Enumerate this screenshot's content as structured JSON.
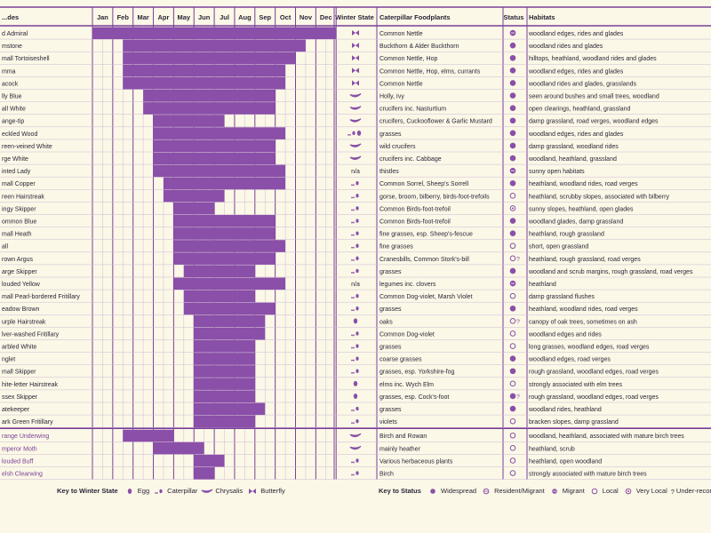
{
  "headers": {
    "species": "...des",
    "months": [
      "Jan",
      "Feb",
      "Mar",
      "Apr",
      "May",
      "Jun",
      "Jul",
      "Aug",
      "Sep",
      "Oct",
      "Nov",
      "Dec"
    ],
    "winter_state": "Winter State",
    "foodplants": "Caterpillar Foodplants",
    "status": "Status",
    "habitats": "Habitats"
  },
  "chart_data": {
    "type": "table",
    "axis": "flight period by month (fractional month index, 0 = start of Jan, 12 = end of Dec)",
    "rows": [
      {
        "species": "d Admiral",
        "periods": [
          [
            0,
            12
          ]
        ],
        "winter": "adult",
        "winter_text": "",
        "food": "Common Nettle",
        "status": "migrant",
        "habitat": "woodland edges, rides and glades"
      },
      {
        "species": "mstone",
        "periods": [
          [
            1.5,
            10.5
          ]
        ],
        "winter": "adult",
        "winter_text": "",
        "food": "Buckthorn & Alder Buckthorn",
        "status": "widespread",
        "habitat": "woodland rides and glades"
      },
      {
        "species": "mall Tortoiseshell",
        "periods": [
          [
            1.5,
            10
          ]
        ],
        "winter": "adult",
        "winter_text": "",
        "food": "Common Nettle, Hop",
        "status": "widespread",
        "habitat": "hilltops, heathland, woodland rides and glades"
      },
      {
        "species": "mma",
        "periods": [
          [
            1.5,
            9.5
          ]
        ],
        "winter": "adult",
        "winter_text": "",
        "food": "Common Nettle, Hop, elms, currants",
        "status": "widespread",
        "habitat": "woodland edges, rides and glades"
      },
      {
        "species": "acock",
        "periods": [
          [
            1.5,
            9.5
          ]
        ],
        "winter": "adult",
        "winter_text": "",
        "food": "Common Nettle",
        "status": "widespread",
        "habitat": "woodland rides and glades, grasslands"
      },
      {
        "species": "lly Blue",
        "periods": [
          [
            2.5,
            9
          ]
        ],
        "winter": "chrysalis",
        "winter_text": "",
        "food": "Holly, Ivy",
        "status": "widespread",
        "habitat": "seen around bushes and small trees, woodland"
      },
      {
        "species": "all White",
        "periods": [
          [
            2.5,
            9
          ]
        ],
        "winter": "chrysalis",
        "winter_text": "",
        "food": "crucifers inc. Nasturtium",
        "status": "widespread",
        "habitat": "open clearings, heathland, grassland"
      },
      {
        "species": "ange-tip",
        "periods": [
          [
            3,
            6.5
          ]
        ],
        "winter": "chrysalis",
        "winter_text": "",
        "food": "crucifers, Cuckooflower & Garlic Mustard",
        "status": "widespread",
        "habitat": "damp grassland, road verges, woodland edges"
      },
      {
        "species": "eckled Wood",
        "periods": [
          [
            3,
            9.5
          ]
        ],
        "winter": "multi",
        "winter_text": "",
        "food": "grasses",
        "status": "widespread",
        "habitat": "woodland edges, rides and glades"
      },
      {
        "species": "reen-veined White",
        "periods": [
          [
            3,
            9
          ]
        ],
        "winter": "chrysalis",
        "winter_text": "",
        "food": "wild crucifers",
        "status": "widespread",
        "habitat": "damp grassland, woodland rides"
      },
      {
        "species": "rge White",
        "periods": [
          [
            3,
            9
          ]
        ],
        "winter": "chrysalis",
        "winter_text": "",
        "food": "crucifers inc. Cabbage",
        "status": "widespread",
        "habitat": "woodland, heathland, grassland"
      },
      {
        "species": "inted Lady",
        "periods": [
          [
            3,
            9.5
          ]
        ],
        "winter": "none",
        "winter_text": "n/a",
        "food": "thistles",
        "status": "migrant",
        "habitat": "sunny open habitats"
      },
      {
        "species": "mall Copper",
        "periods": [
          [
            3.5,
            9.5
          ]
        ],
        "winter": "cat",
        "winter_text": "",
        "food": "Common Sorrel, Sheep's Sorrell",
        "status": "widespread",
        "habitat": "heathland, woodland rides, road verges"
      },
      {
        "species": "reen Hairstreak",
        "periods": [
          [
            3.5,
            6.5
          ]
        ],
        "winter": "cat",
        "winter_text": "",
        "food": "gorse, broom, bilberry, birds-foot-trefoils",
        "status": "local",
        "habitat": "heathland, scrubby slopes, associated with bilberry"
      },
      {
        "species": "ingy Skipper",
        "periods": [
          [
            4,
            6
          ]
        ],
        "winter": "cat",
        "winter_text": "",
        "food": "Common Birds-foot-trefoil",
        "status": "very-local",
        "habitat": "sunny slopes, heathland, open glades"
      },
      {
        "species": "ommon Blue",
        "periods": [
          [
            4,
            9
          ]
        ],
        "winter": "cat",
        "winter_text": "",
        "food": "Common Birds-foot-trefoil",
        "status": "widespread",
        "habitat": "woodland glades, damp grassland"
      },
      {
        "species": "mall Heath",
        "periods": [
          [
            4,
            9
          ]
        ],
        "winter": "cat",
        "winter_text": "",
        "food": "fine grasses, esp. Sheep's-fescue",
        "status": "widespread",
        "habitat": "heathland, rough grassland"
      },
      {
        "species": "all",
        "periods": [
          [
            4,
            9.5
          ]
        ],
        "winter": "cat",
        "winter_text": "",
        "food": "fine grasses",
        "status": "local",
        "habitat": "short, open grassland"
      },
      {
        "species": "rown Argus",
        "periods": [
          [
            4,
            9
          ]
        ],
        "winter": "cat",
        "winter_text": "",
        "food": "Cranesbills, Common Stork's-bill",
        "status": "local-under",
        "habitat": "heathland, rough grassland, road verges"
      },
      {
        "species": "arge Skipper",
        "periods": [
          [
            4.5,
            8
          ]
        ],
        "winter": "cat",
        "winter_text": "",
        "food": "grasses",
        "status": "widespread",
        "habitat": "woodland and scrub margins, rough grassland, road verges"
      },
      {
        "species": "louded Yellow",
        "periods": [
          [
            4,
            9.5
          ]
        ],
        "winter": "none",
        "winter_text": "n/a",
        "food": "legumes inc. clovers",
        "status": "migrant",
        "habitat": "heathland"
      },
      {
        "species": "mall Pearl-bordered Fritillary",
        "periods": [
          [
            4.5,
            8
          ]
        ],
        "winter": "cat",
        "winter_text": "",
        "food": "Common Dog-violet, Marsh Violet",
        "status": "local",
        "habitat": "damp grassland flushes"
      },
      {
        "species": "eadow Brown",
        "periods": [
          [
            4.5,
            9
          ]
        ],
        "winter": "cat",
        "winter_text": "",
        "food": "grasses",
        "status": "widespread",
        "habitat": "heathland, woodland rides, road verges"
      },
      {
        "species": "urple Hairstreak",
        "periods": [
          [
            5,
            8.5
          ]
        ],
        "winter": "egg",
        "winter_text": "",
        "food": "oaks",
        "status": "local-under",
        "habitat": "canopy of oak trees, sometimes on ash"
      },
      {
        "species": "lver-washed Fritillary",
        "periods": [
          [
            5,
            8.5
          ]
        ],
        "winter": "cat",
        "winter_text": "",
        "food": "Common Dog-violet",
        "status": "local",
        "habitat": "woodland edges and rides"
      },
      {
        "species": "arbled White",
        "periods": [
          [
            5,
            8
          ]
        ],
        "winter": "cat",
        "winter_text": "",
        "food": "grasses",
        "status": "local",
        "habitat": "long grasses, woodland edges, road verges"
      },
      {
        "species": "nglet",
        "periods": [
          [
            5,
            8
          ]
        ],
        "winter": "cat",
        "winter_text": "",
        "food": "coarse grasses",
        "status": "widespread",
        "habitat": "woodland edges, road verges"
      },
      {
        "species": "mall Skipper",
        "periods": [
          [
            5,
            8
          ]
        ],
        "winter": "cat",
        "winter_text": "",
        "food": "grasses, esp. Yorkshire-fog",
        "status": "widespread",
        "habitat": "rough grassland, woodland edges, road verges"
      },
      {
        "species": "hite-letter Hairstreak",
        "periods": [
          [
            5,
            8
          ]
        ],
        "winter": "egg",
        "winter_text": "",
        "food": "elms inc. Wych Elm",
        "status": "local",
        "habitat": "strongly associated with elm trees"
      },
      {
        "species": "ssex Skipper",
        "periods": [
          [
            5,
            8
          ]
        ],
        "winter": "egg",
        "winter_text": "",
        "food": "grasses, esp. Cock's-foot",
        "status": "widespread-under",
        "habitat": "rough grassland, woodland edges, road verges"
      },
      {
        "species": "atekeeper",
        "periods": [
          [
            5,
            8.5
          ]
        ],
        "winter": "cat",
        "winter_text": "",
        "food": "grasses",
        "status": "widespread",
        "habitat": "woodland rides, heathland"
      },
      {
        "species": "ark Green Fritillary",
        "periods": [
          [
            5,
            8
          ]
        ],
        "winter": "cat",
        "winter_text": "",
        "food": "violets",
        "status": "local",
        "habitat": "bracken slopes, damp grassland"
      },
      {
        "species": "range Underwing",
        "periods": [
          [
            1.5,
            4
          ]
        ],
        "winter": "chrysalis",
        "winter_text": "",
        "food": "Birch and Rowan",
        "status": "local",
        "habitat": "woodland, heathland, associated with mature birch trees"
      },
      {
        "species": "mperor Moth",
        "periods": [
          [
            3,
            5.5
          ]
        ],
        "winter": "chrysalis",
        "winter_text": "",
        "food": "mainly heather",
        "status": "local",
        "habitat": "heathland, scrub"
      },
      {
        "species": "louded Buff",
        "periods": [
          [
            5,
            6.5
          ]
        ],
        "winter": "cat",
        "winter_text": "",
        "food": "Various herbaceous plants",
        "status": "local",
        "habitat": "heathland, open woodland"
      },
      {
        "species": "elsh Clearwing",
        "periods": [
          [
            5,
            6
          ]
        ],
        "winter": "cat",
        "winter_text": "",
        "food": "Birch",
        "status": "local",
        "habitat": "strongly associated with mature birch trees"
      }
    ]
  },
  "legend": {
    "winter_title": "Key to Winter State",
    "winter": [
      {
        "key": "egg",
        "label": "Egg"
      },
      {
        "key": "cat",
        "label": "Caterpillar"
      },
      {
        "key": "chrysalis",
        "label": "Chrysalis"
      },
      {
        "key": "adult",
        "label": "Butterfly"
      }
    ],
    "status_title": "Key to Status",
    "status": [
      {
        "key": "widespread",
        "label": "Widespread"
      },
      {
        "key": "resident-migrant",
        "label": "Resident/Migrant"
      },
      {
        "key": "migrant",
        "label": "Migrant"
      },
      {
        "key": "local",
        "label": "Local"
      },
      {
        "key": "very-local",
        "label": "Very Local"
      },
      {
        "key": "under",
        "label": "Under-recorded",
        "glyph": "?"
      }
    ]
  },
  "colors": {
    "bar": "#8a4fa8",
    "accent": "#7a3f98",
    "grid": "#cdb8d6",
    "bg": "#fbf8e7",
    "text": "#2c2438"
  }
}
